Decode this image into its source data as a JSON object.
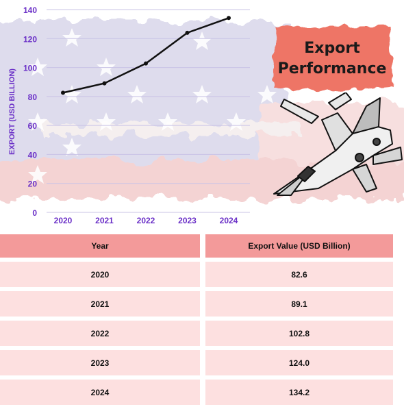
{
  "badge": {
    "line1": "Export",
    "line2": "Performance"
  },
  "colors": {
    "axis_text": "#6a2fc7",
    "line": "#111111",
    "header_fill": "#f39a9a",
    "cell_fill": "#fde0e0",
    "badge_fill": "#ee7466"
  },
  "chart_data": {
    "type": "line",
    "title": "",
    "xlabel": "",
    "ylabel": "EXPORT (USD BILLION)",
    "categories": [
      "2020",
      "2021",
      "2022",
      "2023",
      "2024"
    ],
    "series": [
      {
        "values": [
          82.6,
          89.1,
          102.8,
          124.0,
          134.2
        ]
      }
    ],
    "ylim": [
      0,
      140
    ],
    "yticks": [
      "0",
      "20",
      "40",
      "60",
      "80",
      "100",
      "120",
      "140"
    ],
    "grid": true
  },
  "table": {
    "headers": [
      "Year",
      "Export Value (USD Billion)"
    ],
    "rows": [
      [
        "2020",
        "82.6"
      ],
      [
        "2021",
        "89.1"
      ],
      [
        "2022",
        "102.8"
      ],
      [
        "2023",
        "124.0"
      ],
      [
        "2024",
        "134.2"
      ]
    ]
  }
}
